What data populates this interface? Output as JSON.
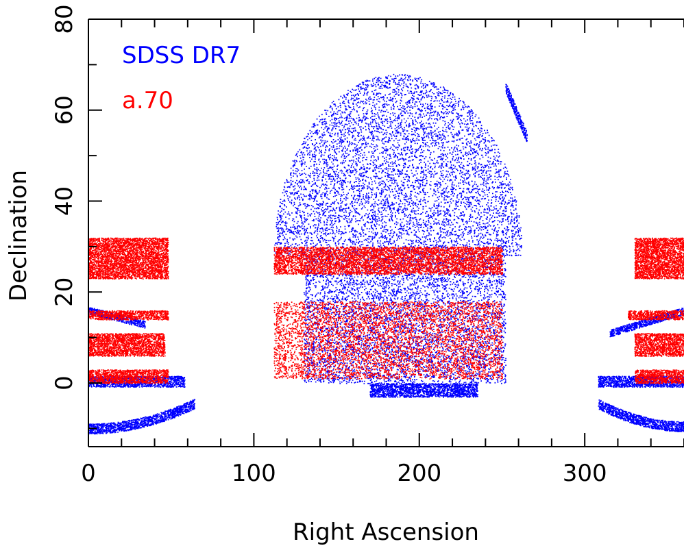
{
  "chart_data": {
    "type": "scatter",
    "xlabel": "Right Ascension",
    "ylabel": "Declination",
    "xlim": [
      0,
      360
    ],
    "ylim": [
      -14,
      80
    ],
    "x_ticks": [
      0,
      100,
      200,
      300
    ],
    "y_ticks": [
      0,
      20,
      40,
      60,
      80
    ],
    "x_minor_step": 20,
    "y_minor_step": 10,
    "grid": false,
    "legend_position": "top-left",
    "series": [
      {
        "name": "SDSS DR7",
        "color": "#0000ff",
        "regions": [
          {
            "shape": "cap",
            "ra": [
              112,
              262
            ],
            "dec_bottom": 28,
            "dec_top": 68
          },
          {
            "shape": "rect",
            "ra": [
              130,
              252
            ],
            "dec": [
              0,
              28
            ]
          },
          {
            "shape": "rect",
            "ra": [
              170,
              235
            ],
            "dec": [
              -3,
              0
            ]
          },
          {
            "shape": "rect",
            "ra": [
              0,
              58
            ],
            "dec": [
              -0.8,
              1.6
            ]
          },
          {
            "shape": "rect",
            "ra": [
              308,
              360
            ],
            "dec": [
              -0.8,
              1.6
            ]
          },
          {
            "shape": "stripe",
            "ra": [
              0,
              34
            ],
            "dec_start": 16,
            "dec_end": 13,
            "width": 1.6
          },
          {
            "shape": "stripe",
            "ra": [
              315,
              360
            ],
            "dec_start": 11,
            "dec_end": 16,
            "width": 1.6
          },
          {
            "shape": "arc",
            "ra": [
              0,
              64
            ],
            "dec_start": -10,
            "dec_end": -4.5,
            "width": 2.2
          },
          {
            "shape": "arc",
            "ra": [
              308,
              360
            ],
            "dec_start": -4.5,
            "dec_end": -9.5,
            "width": 2.2
          },
          {
            "shape": "stripe",
            "ra": [
              252,
              265
            ],
            "dec_start": 65,
            "dec_end": 54,
            "width": 2.5
          }
        ]
      },
      {
        "name": "a.70",
        "color": "#ff0000",
        "regions": [
          {
            "shape": "rect",
            "ra": [
              0,
              48
            ],
            "dec": [
              23,
              32
            ]
          },
          {
            "shape": "rect",
            "ra": [
              0,
              48
            ],
            "dec": [
              14,
              16
            ]
          },
          {
            "shape": "rect",
            "ra": [
              0,
              46
            ],
            "dec": [
              6,
              11
            ]
          },
          {
            "shape": "rect",
            "ra": [
              0,
              48
            ],
            "dec": [
              0,
              3
            ]
          },
          {
            "shape": "rect",
            "ra": [
              112,
              250
            ],
            "dec": [
              24,
              30
            ]
          },
          {
            "shape": "rect",
            "ra": [
              112,
              250
            ],
            "dec": [
              1,
              18
            ]
          },
          {
            "shape": "rect",
            "ra": [
              330,
              360
            ],
            "dec": [
              23,
              32
            ]
          },
          {
            "shape": "rect",
            "ra": [
              326,
              360
            ],
            "dec": [
              14,
              16
            ]
          },
          {
            "shape": "rect",
            "ra": [
              330,
              360
            ],
            "dec": [
              6,
              11
            ]
          },
          {
            "shape": "rect",
            "ra": [
              330,
              360
            ],
            "dec": [
              0,
              3
            ]
          }
        ]
      }
    ]
  }
}
